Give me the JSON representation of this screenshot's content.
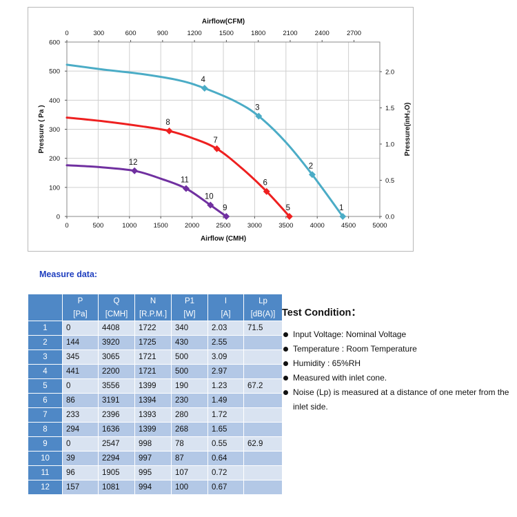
{
  "chart_data": {
    "type": "line",
    "xlabel": "Airflow (CMH)",
    "x2label": "Airflow(CFM)",
    "ylabel": "Pressure ( Pa )",
    "y2label": "Pressure(inH₂O)",
    "xlim": [
      0,
      5000
    ],
    "x2lim": [
      0,
      2943
    ],
    "ylim": [
      0,
      600
    ],
    "y2lim": [
      0,
      2.409
    ],
    "x_ticks": [
      "0",
      "500",
      "1000",
      "1500",
      "2000",
      "2500",
      "3000",
      "3500",
      "4000",
      "4500",
      "5000"
    ],
    "x2_ticks": [
      "0",
      "300",
      "600",
      "900",
      "1200",
      "1500",
      "1800",
      "2100",
      "2400",
      "2700"
    ],
    "y_ticks": [
      "0",
      "100",
      "200",
      "300",
      "400",
      "500",
      "600"
    ],
    "y2_ticks": [
      "0.0",
      "0.5",
      "1.0",
      "1.5",
      "2.0"
    ],
    "grid": true,
    "series": [
      {
        "color": "#4bacc6",
        "curve": [
          [
            0,
            522
          ],
          [
            600,
            505
          ],
          [
            1200,
            490
          ],
          [
            1800,
            468
          ],
          [
            2200,
            441
          ],
          [
            2700,
            395
          ],
          [
            3065,
            345
          ],
          [
            3500,
            255
          ],
          [
            3920,
            144
          ],
          [
            4408,
            0
          ]
        ],
        "points": [
          {
            "label": "1",
            "x": 4408,
            "y": 0
          },
          {
            "label": "2",
            "x": 3920,
            "y": 144
          },
          {
            "label": "3",
            "x": 3065,
            "y": 345
          },
          {
            "label": "4",
            "x": 2200,
            "y": 441
          }
        ]
      },
      {
        "color": "#ee2020",
        "curve": [
          [
            0,
            340
          ],
          [
            600,
            327
          ],
          [
            1200,
            310
          ],
          [
            1636,
            294
          ],
          [
            2000,
            270
          ],
          [
            2396,
            233
          ],
          [
            2800,
            165
          ],
          [
            3191,
            86
          ],
          [
            3556,
            0
          ]
        ],
        "points": [
          {
            "label": "5",
            "x": 3556,
            "y": 0
          },
          {
            "label": "6",
            "x": 3191,
            "y": 86
          },
          {
            "label": "7",
            "x": 2396,
            "y": 233
          },
          {
            "label": "8",
            "x": 1636,
            "y": 294
          }
        ]
      },
      {
        "color": "#7030a0",
        "curve": [
          [
            0,
            176
          ],
          [
            500,
            170
          ],
          [
            1081,
            157
          ],
          [
            1500,
            130
          ],
          [
            1905,
            96
          ],
          [
            2294,
            39
          ],
          [
            2547,
            0
          ]
        ],
        "points": [
          {
            "label": "9",
            "x": 2547,
            "y": 0
          },
          {
            "label": "10",
            "x": 2294,
            "y": 39
          },
          {
            "label": "11",
            "x": 1905,
            "y": 96
          },
          {
            "label": "12",
            "x": 1081,
            "y": 157
          }
        ]
      }
    ]
  },
  "measure": {
    "title": "Measure data:",
    "columns": [
      {
        "name": "P",
        "unit": "[Pa]"
      },
      {
        "name": "Q",
        "unit": "[CMH]"
      },
      {
        "name": "N",
        "unit": "[R.P.M.]"
      },
      {
        "name": "P1",
        "unit": "[W]"
      },
      {
        "name": "I",
        "unit": "[A]"
      },
      {
        "name": "Lp",
        "unit": "[dB(A)]"
      }
    ],
    "rows": [
      {
        "no": "1",
        "values": [
          "0",
          "4408",
          "1722",
          "340",
          "2.03",
          "71.5"
        ]
      },
      {
        "no": "2",
        "values": [
          "144",
          "3920",
          "1725",
          "430",
          "2.55",
          ""
        ]
      },
      {
        "no": "3",
        "values": [
          "345",
          "3065",
          "1721",
          "500",
          "3.09",
          ""
        ]
      },
      {
        "no": "4",
        "values": [
          "441",
          "2200",
          "1721",
          "500",
          "2.97",
          ""
        ]
      },
      {
        "no": "5",
        "values": [
          "0",
          "3556",
          "1399",
          "190",
          "1.23",
          "67.2"
        ]
      },
      {
        "no": "6",
        "values": [
          "86",
          "3191",
          "1394",
          "230",
          "1.49",
          ""
        ]
      },
      {
        "no": "7",
        "values": [
          "233",
          "2396",
          "1393",
          "280",
          "1.72",
          ""
        ]
      },
      {
        "no": "8",
        "values": [
          "294",
          "1636",
          "1399",
          "268",
          "1.65",
          ""
        ]
      },
      {
        "no": "9",
        "values": [
          "0",
          "2547",
          "998",
          "78",
          "0.55",
          "62.9"
        ]
      },
      {
        "no": "10",
        "values": [
          "39",
          "2294",
          "997",
          "87",
          "0.64",
          ""
        ]
      },
      {
        "no": "11",
        "values": [
          "96",
          "1905",
          "995",
          "107",
          "0.72",
          ""
        ]
      },
      {
        "no": "12",
        "values": [
          "157",
          "1081",
          "994",
          "100",
          "0.67",
          ""
        ]
      }
    ]
  },
  "test_condition": {
    "title": "Test Condition：",
    "items": [
      "Input Voltage: Nominal Voltage",
      "Temperature : Room Temperature",
      "Humidity : 65%RH",
      "Measured with inlet cone.",
      "Noise (Lp) is measured at a distance of one meter from the inlet side."
    ]
  }
}
